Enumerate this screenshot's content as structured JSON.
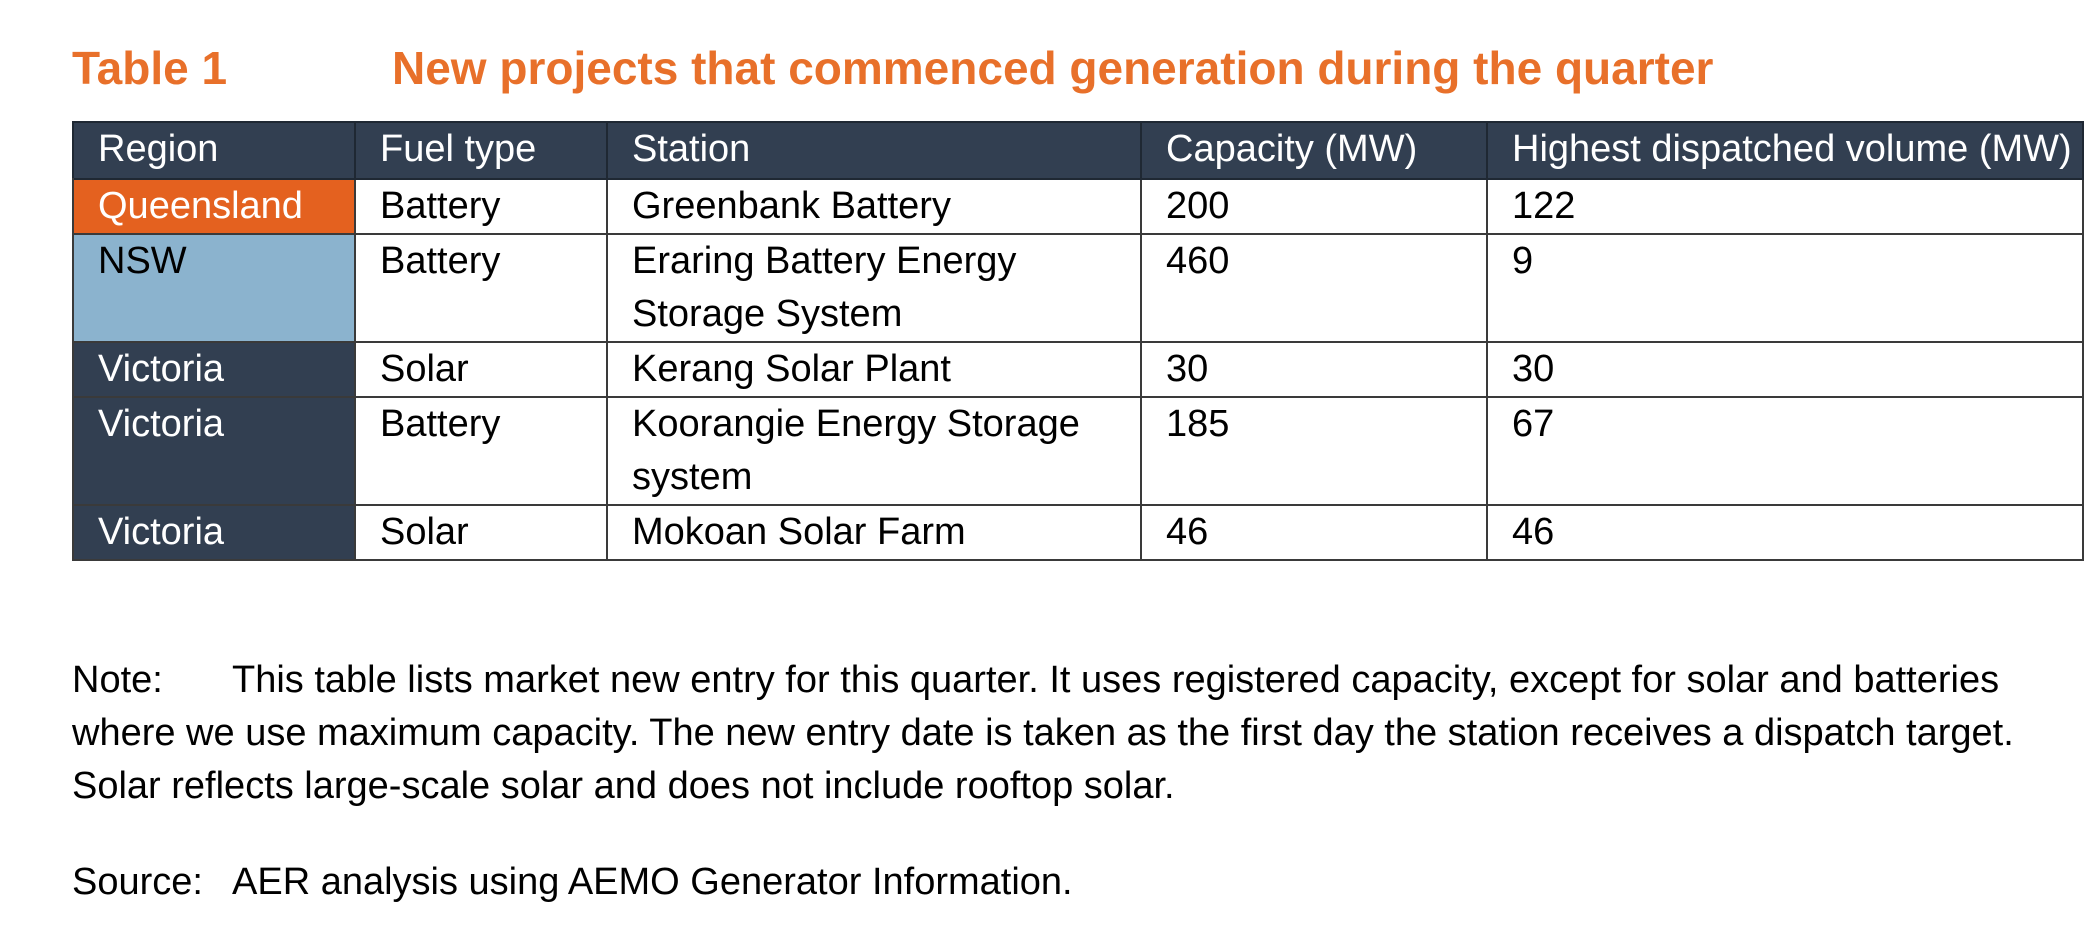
{
  "caption": {
    "label": "Table 1",
    "title": "New projects that commenced generation during the quarter",
    "color": "#e8702a"
  },
  "colors": {
    "header_bg": "#323f51",
    "region_queensland": "#e4611f",
    "region_nsw": "#8bb3ce",
    "region_victoria": "#323f51"
  },
  "table": {
    "headers": [
      "Region",
      "Fuel type",
      "Station",
      "Capacity (MW)",
      "Highest dispatched volume (MW)"
    ],
    "rows": [
      {
        "region": "Queensland",
        "fuel": "Battery",
        "station": "Greenbank Battery",
        "capacity": "200",
        "highest": "122",
        "region_color": "#e4611f",
        "region_text_color": "#ffffff"
      },
      {
        "region": "NSW",
        "fuel": "Battery",
        "station": "Eraring Battery Energy Storage System",
        "capacity": "460",
        "highest": "9",
        "region_color": "#8bb3ce",
        "region_text_color": "#000000"
      },
      {
        "region": "Victoria",
        "fuel": "Solar",
        "station": "Kerang Solar Plant",
        "capacity": "30",
        "highest": "30",
        "region_color": "#323f51",
        "region_text_color": "#ffffff"
      },
      {
        "region": "Victoria",
        "fuel": "Battery",
        "station": "Koorangie Energy Storage system",
        "capacity": "185",
        "highest": "67",
        "region_color": "#323f51",
        "region_text_color": "#ffffff"
      },
      {
        "region": "Victoria",
        "fuel": "Solar",
        "station": "Mokoan Solar Farm",
        "capacity": "46",
        "highest": "46",
        "region_color": "#323f51",
        "region_text_color": "#ffffff"
      }
    ]
  },
  "note": {
    "label": "Note:",
    "text": "This table lists market new entry for this quarter. It uses registered capacity, except for solar and batteries where we use maximum capacity. The new entry date is taken as the first day the station receives a dispatch target. Solar reflects large-scale solar and does not include rooftop solar."
  },
  "source": {
    "label": "Source:",
    "text": "AER analysis using AEMO Generator Information."
  }
}
